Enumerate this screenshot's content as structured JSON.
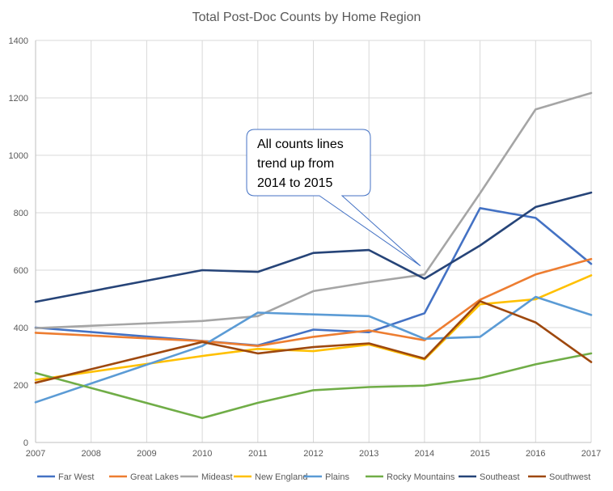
{
  "chart_data": {
    "type": "line",
    "title": "Total Post-Doc Counts by Home Region",
    "xlabel": "",
    "ylabel": "",
    "x": [
      2007,
      2008,
      2009,
      2010,
      2011,
      2012,
      2013,
      2014,
      2015,
      2016,
      2017
    ],
    "x_labels": [
      "2007",
      "2008",
      "2009",
      "2010",
      "2011",
      "2012",
      "2013",
      "2014",
      "2015",
      "2016",
      "2017"
    ],
    "ylim": [
      0,
      1400
    ],
    "y_ticks": [
      0,
      200,
      400,
      600,
      800,
      1000,
      1200,
      1400
    ],
    "y_tick_labels": [
      "0",
      "200",
      "400",
      "600",
      "800",
      "1000",
      "1200",
      "1400"
    ],
    "grid": "vertical and horizontal",
    "legend_position": "bottom",
    "series": [
      {
        "name": "Far West",
        "color": "#4472C4",
        "points": [
          [
            2007,
            400
          ],
          [
            2011,
            338
          ],
          [
            2012,
            393
          ],
          [
            2013,
            384
          ],
          [
            2014,
            450
          ],
          [
            2015,
            816
          ],
          [
            2016,
            782
          ],
          [
            2017,
            622
          ]
        ]
      },
      {
        "name": "Great Lakes",
        "color": "#ED7D31",
        "points": [
          [
            2007,
            382
          ],
          [
            2010,
            353
          ],
          [
            2011,
            336
          ],
          [
            2012,
            368
          ],
          [
            2013,
            390
          ],
          [
            2014,
            356
          ],
          [
            2015,
            497
          ],
          [
            2016,
            585
          ],
          [
            2017,
            639
          ]
        ]
      },
      {
        "name": "Mideast",
        "color": "#A5A5A5",
        "points": [
          [
            2007,
            398
          ],
          [
            2010,
            423
          ],
          [
            2011,
            440
          ],
          [
            2012,
            527
          ],
          [
            2013,
            558
          ],
          [
            2014,
            585
          ],
          [
            2015,
            868
          ],
          [
            2016,
            1160
          ],
          [
            2017,
            1217
          ]
        ]
      },
      {
        "name": "New England",
        "color": "#FFC000",
        "points": [
          [
            2007,
            218
          ],
          [
            2010,
            301
          ],
          [
            2011,
            326
          ],
          [
            2012,
            318
          ],
          [
            2013,
            341
          ],
          [
            2014,
            289
          ],
          [
            2015,
            481
          ],
          [
            2016,
            499
          ],
          [
            2017,
            582
          ]
        ]
      },
      {
        "name": "Plains",
        "color": "#5B9BD5",
        "points": [
          [
            2007,
            140
          ],
          [
            2010,
            336
          ],
          [
            2011,
            452
          ],
          [
            2012,
            446
          ],
          [
            2013,
            440
          ],
          [
            2014,
            361
          ],
          [
            2015,
            368
          ],
          [
            2016,
            507
          ],
          [
            2017,
            444
          ]
        ]
      },
      {
        "name": "Rocky Mountains",
        "color": "#70AD47",
        "points": [
          [
            2007,
            242
          ],
          [
            2010,
            85
          ],
          [
            2011,
            138
          ],
          [
            2012,
            182
          ],
          [
            2013,
            193
          ],
          [
            2014,
            198
          ],
          [
            2015,
            224
          ],
          [
            2016,
            272
          ],
          [
            2017,
            310
          ]
        ]
      },
      {
        "name": "Southeast",
        "color": "#264478",
        "points": [
          [
            2007,
            490
          ],
          [
            2010,
            600
          ],
          [
            2011,
            594
          ],
          [
            2012,
            660
          ],
          [
            2013,
            670
          ],
          [
            2014,
            570
          ],
          [
            2015,
            686
          ],
          [
            2016,
            820
          ],
          [
            2017,
            870
          ]
        ]
      },
      {
        "name": "Southwest",
        "color": "#9E480E",
        "points": [
          [
            2007,
            208
          ],
          [
            2010,
            350
          ],
          [
            2011,
            310
          ],
          [
            2012,
            332
          ],
          [
            2013,
            345
          ],
          [
            2014,
            292
          ],
          [
            2015,
            492
          ],
          [
            2016,
            418
          ],
          [
            2017,
            280
          ]
        ]
      }
    ],
    "annotations": [
      {
        "text_lines": [
          "All counts lines",
          "trend up from",
          "2014 to 2015"
        ],
        "points_to": [
          2014,
          615
        ]
      }
    ]
  }
}
